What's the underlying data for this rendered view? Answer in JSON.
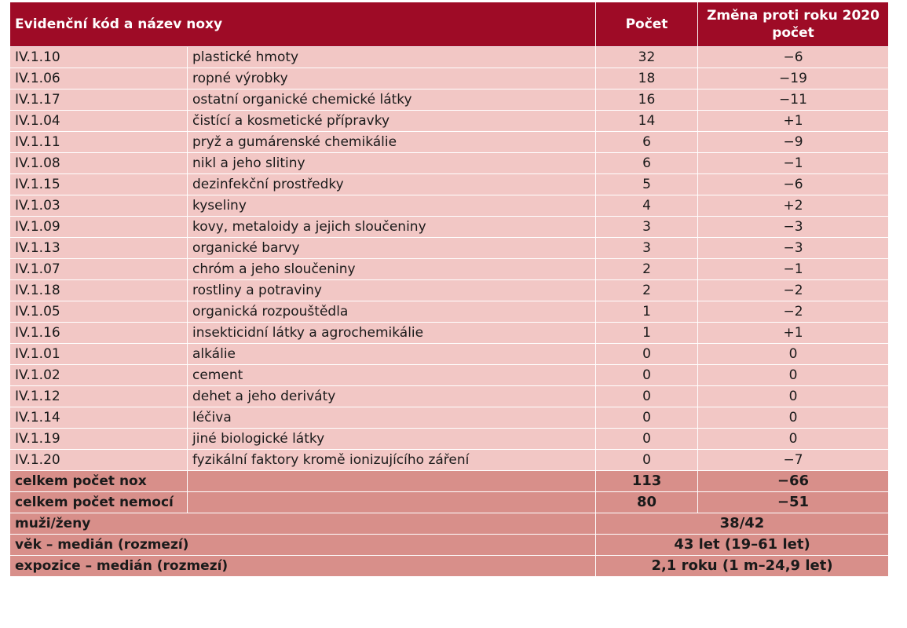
{
  "header": {
    "code_name": "Evidenční kód a název noxy",
    "count": "Počet",
    "change_line1": "Změna proti roku 2020",
    "change_line2": "počet"
  },
  "rows": [
    {
      "code": "IV.1.10",
      "name": "plastické hmoty",
      "count": "32",
      "change": "−6"
    },
    {
      "code": "IV.1.06",
      "name": "ropné výrobky",
      "count": "18",
      "change": "−19"
    },
    {
      "code": "IV.1.17",
      "name": "ostatní organické chemické látky",
      "count": "16",
      "change": "−11"
    },
    {
      "code": "IV.1.04",
      "name": "čistící a kosmetické přípravky",
      "count": "14",
      "change": "+1"
    },
    {
      "code": "IV.1.11",
      "name": "pryž a gumárenské chemikálie",
      "count": "6",
      "change": "−9"
    },
    {
      "code": "IV.1.08",
      "name": "nikl a jeho slitiny",
      "count": "6",
      "change": "−1"
    },
    {
      "code": "IV.1.15",
      "name": "dezinfekční prostředky",
      "count": "5",
      "change": "−6"
    },
    {
      "code": "IV.1.03",
      "name": "kyseliny",
      "count": "4",
      "change": "+2"
    },
    {
      "code": "IV.1.09",
      "name": "kovy, metaloidy a jejich sloučeniny",
      "count": "3",
      "change": "−3"
    },
    {
      "code": "IV.1.13",
      "name": "organické barvy",
      "count": "3",
      "change": "−3"
    },
    {
      "code": "IV.1.07",
      "name": "chróm a jeho sloučeniny",
      "count": "2",
      "change": "−1"
    },
    {
      "code": "IV.1.18",
      "name": "rostliny a potraviny",
      "count": "2",
      "change": "−2"
    },
    {
      "code": "IV.1.05",
      "name": "organická rozpouštědla",
      "count": "1",
      "change": "−2"
    },
    {
      "code": "IV.1.16",
      "name": "insekticidní látky a agrochemikálie",
      "count": "1",
      "change": "+1"
    },
    {
      "code": "IV.1.01",
      "name": "alkálie",
      "count": "0",
      "change": "0"
    },
    {
      "code": "IV.1.02",
      "name": "cement",
      "count": "0",
      "change": "0"
    },
    {
      "code": "IV.1.12",
      "name": "dehet a jeho deriváty",
      "count": "0",
      "change": "0"
    },
    {
      "code": "IV.1.14",
      "name": "léčiva",
      "count": "0",
      "change": "0"
    },
    {
      "code": "IV.1.19",
      "name": "jiné biologické látky",
      "count": "0",
      "change": "0"
    },
    {
      "code": "IV.1.20",
      "name": "fyzikální faktory kromě ionizujícího záření",
      "count": "0",
      "change": "−7"
    }
  ],
  "totals": {
    "nox_label": "celkem počet nox",
    "nox_count": "113",
    "nox_change": "−66",
    "disease_label": "celkem počet nemocí",
    "disease_count": "80",
    "disease_change": "−51"
  },
  "summary": [
    {
      "label": "muži/ženy",
      "value": "38/42"
    },
    {
      "label": "věk – medián (rozmezí)",
      "value": "43 let (19–61 let)"
    },
    {
      "label": "expozice – medián (rozmezí)",
      "value": "2,1 roku (1 m–24,9 let)"
    }
  ]
}
